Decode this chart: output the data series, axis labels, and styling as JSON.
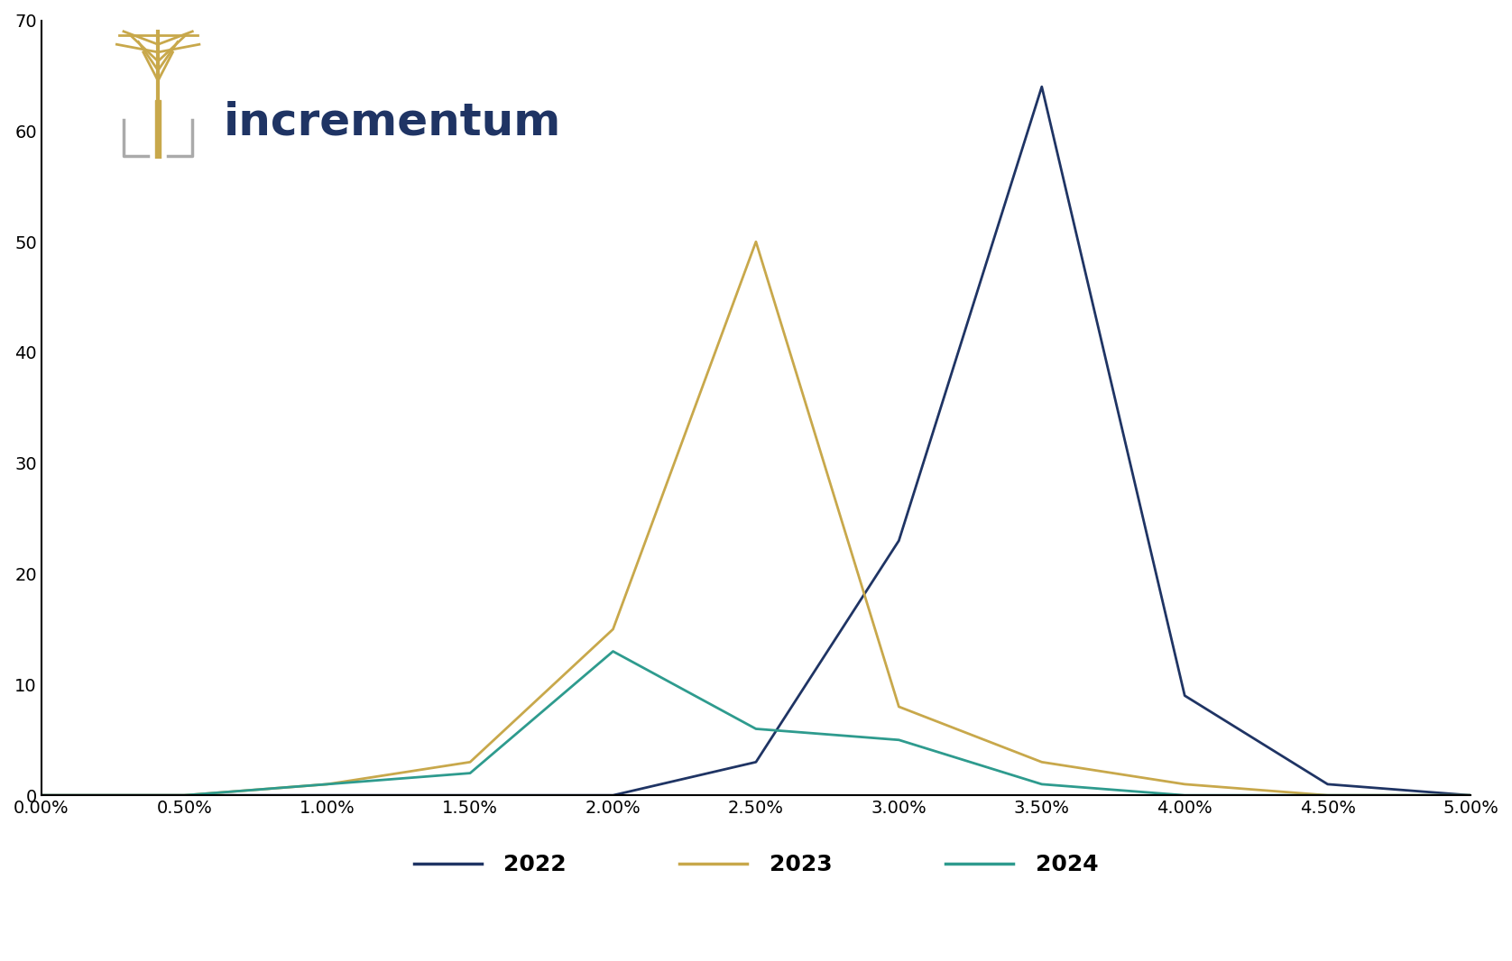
{
  "x_ticks": [
    0.0,
    0.005,
    0.01,
    0.015,
    0.02,
    0.025,
    0.03,
    0.035,
    0.04,
    0.045,
    0.05
  ],
  "x_tick_labels": [
    "0.00%",
    "0.50%",
    "1.00%",
    "1.50%",
    "2.00%",
    "2.50%",
    "3.00%",
    "3.50%",
    "4.00%",
    "4.50%",
    "5.00%"
  ],
  "ylim": [
    0,
    70
  ],
  "y_ticks": [
    0,
    10,
    20,
    30,
    40,
    50,
    60,
    70
  ],
  "series_2022": {
    "x": [
      0.0,
      0.005,
      0.01,
      0.015,
      0.02,
      0.025,
      0.03,
      0.035,
      0.04,
      0.045,
      0.05
    ],
    "y": [
      0,
      0,
      0,
      0,
      0,
      3,
      23,
      64,
      9,
      1,
      0
    ],
    "color": "#1f3464",
    "label": "2022",
    "linewidth": 2.0
  },
  "series_2023": {
    "x": [
      0.0,
      0.005,
      0.01,
      0.015,
      0.02,
      0.025,
      0.03,
      0.035,
      0.04,
      0.045,
      0.05
    ],
    "y": [
      0,
      0,
      1,
      3,
      15,
      50,
      8,
      3,
      1,
      0,
      0
    ],
    "color": "#c8a84b",
    "label": "2023",
    "linewidth": 2.0
  },
  "series_2024": {
    "x": [
      0.0,
      0.005,
      0.01,
      0.015,
      0.02,
      0.025,
      0.03,
      0.035,
      0.04,
      0.045,
      0.05
    ],
    "y": [
      0,
      0,
      1,
      2,
      13,
      6,
      5,
      1,
      0,
      0,
      0
    ],
    "color": "#2e9b8e",
    "label": "2024",
    "linewidth": 2.0
  },
  "logo_text": "incrementum",
  "logo_text_color": "#1f3464",
  "logo_text_fontsize": 36,
  "gold_color": "#c8a84b",
  "grey_color": "#aaaaaa",
  "axis_color": "#000000",
  "tick_fontsize": 14,
  "legend_fontsize": 18,
  "background_color": "#ffffff"
}
